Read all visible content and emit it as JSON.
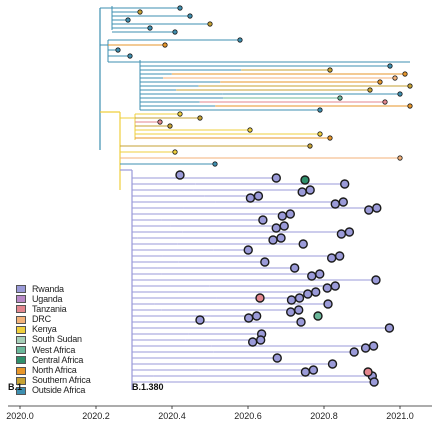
{
  "chart_data": {
    "type": "phylogenetic-tree",
    "xaxis": {
      "ticks": [
        "2020.0",
        "2020.2",
        "2020.4",
        "2020.6",
        "2020.8",
        "2021.0"
      ],
      "range": [
        2020.0,
        2021.1
      ]
    },
    "legend": [
      {
        "name": "Rwanda",
        "color": "#9a9ad8"
      },
      {
        "name": "Uganda",
        "color": "#b889c8"
      },
      {
        "name": "Tanzania",
        "color": "#e3868e"
      },
      {
        "name": "DRC",
        "color": "#f3b27a"
      },
      {
        "name": "Kenya",
        "color": "#efcf3c"
      },
      {
        "name": "South Sudan",
        "color": "#a6cfb8"
      },
      {
        "name": "West Africa",
        "color": "#6bb79a"
      },
      {
        "name": "Central Africa",
        "color": "#2f8f6b"
      },
      {
        "name": "North Africa",
        "color": "#e7962a"
      },
      {
        "name": "Southern Africa",
        "color": "#c6a234"
      },
      {
        "name": "Outside Africa",
        "color": "#3e8fb0"
      }
    ],
    "clades": [
      "B.1",
      "B.1.380"
    ]
  }
}
